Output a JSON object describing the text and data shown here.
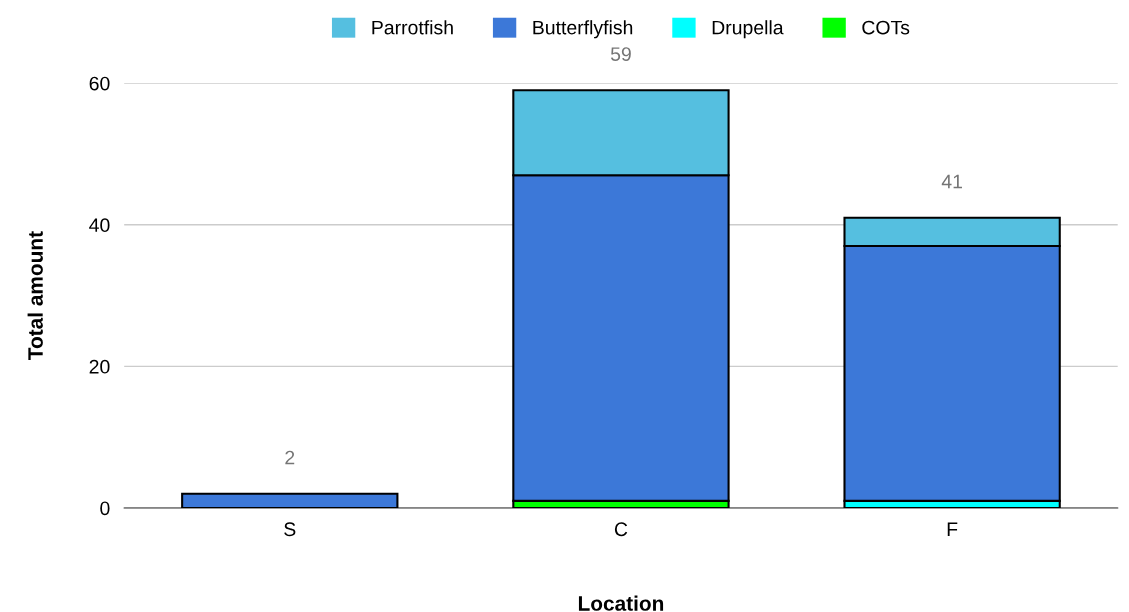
{
  "chart_data": {
    "type": "bar",
    "stacked": true,
    "xlabel": "Location",
    "ylabel": "Total amount",
    "categories": [
      "S",
      "C",
      "F"
    ],
    "series": [
      {
        "name": "COTs",
        "color": "#00ff00",
        "values": [
          null,
          1,
          null
        ]
      },
      {
        "name": "Drupella",
        "color": "#00ffff",
        "values": [
          null,
          null,
          1
        ]
      },
      {
        "name": "Butterflyfish",
        "color": "#3c78d8",
        "values": [
          2,
          46,
          36
        ]
      },
      {
        "name": "Parrotfish",
        "color": "#55bfe0",
        "values": [
          null,
          12,
          4
        ]
      }
    ],
    "totals": [
      "2",
      "59",
      "41"
    ],
    "ylim": [
      0,
      60
    ],
    "yticks": [
      0,
      20,
      40,
      60
    ],
    "grid": "y",
    "legend": "top"
  }
}
